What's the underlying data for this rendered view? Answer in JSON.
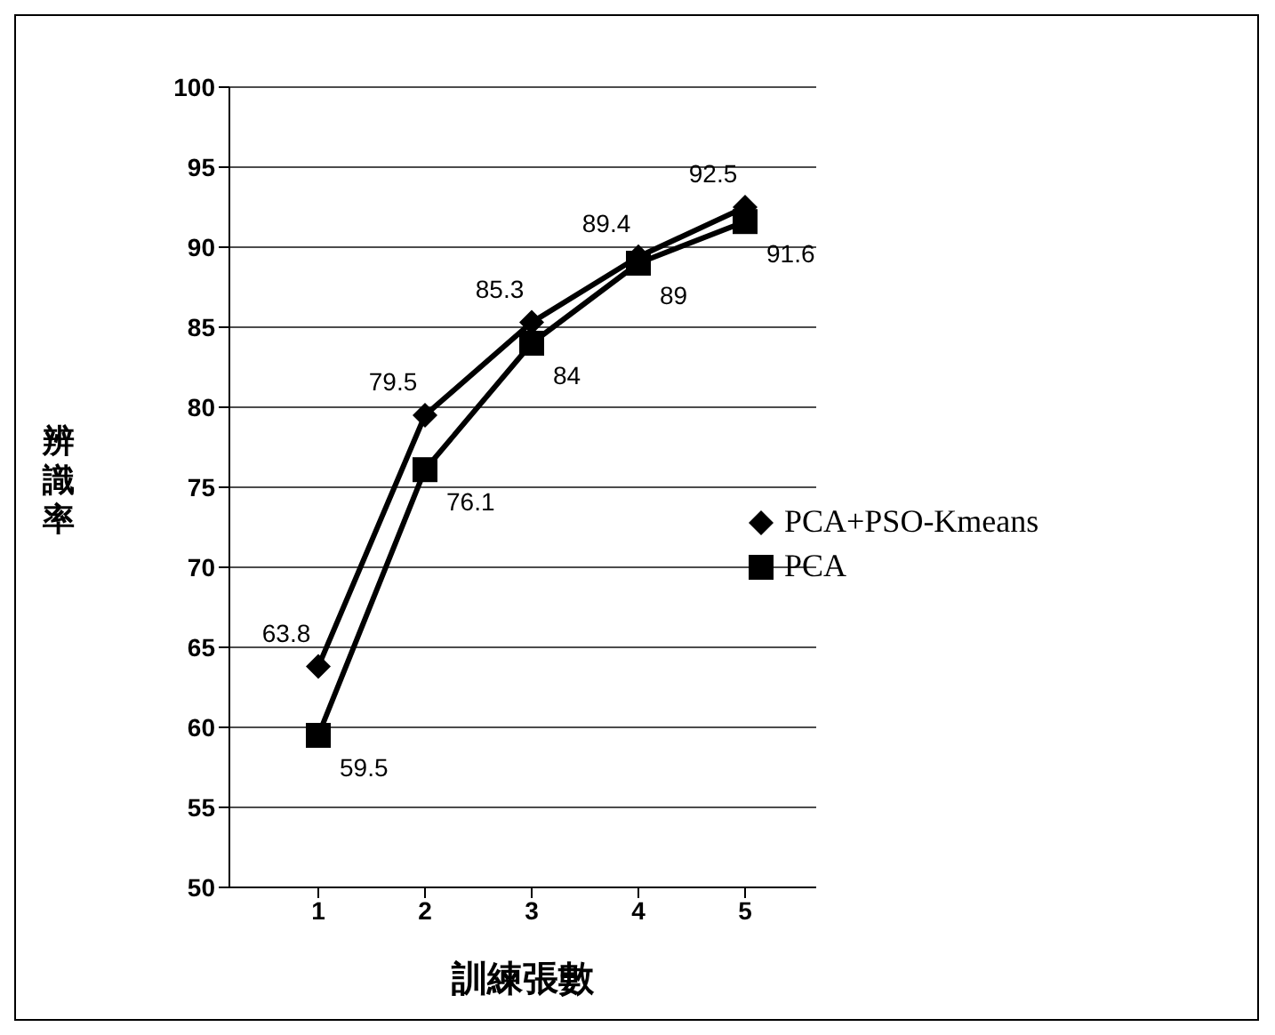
{
  "chart_data": {
    "type": "line",
    "xlabel": "訓練張數",
    "ylabel": "辨識率",
    "categories": [
      "1",
      "2",
      "3",
      "4",
      "5"
    ],
    "series": [
      {
        "name": "PCA+PSO-Kmeans",
        "color": "#000000",
        "marker": "diamond",
        "values": [
          63.8,
          79.5,
          85.3,
          89.4,
          92.5
        ]
      },
      {
        "name": "PCA",
        "color": "#000000",
        "marker": "square",
        "values": [
          59.5,
          76.1,
          84,
          89,
          91.6
        ]
      }
    ],
    "ylim": [
      50,
      100
    ],
    "yticks": [
      50,
      55,
      60,
      65,
      70,
      75,
      80,
      85,
      90,
      95,
      100
    ],
    "grid": "y",
    "legend": "right",
    "data_labels": true,
    "line_style": "solid"
  }
}
